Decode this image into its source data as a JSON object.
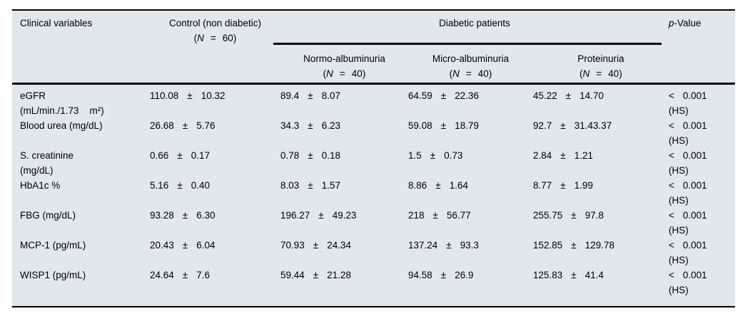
{
  "colors": {
    "table_bg": "#e2e7e9",
    "rule": "#000000",
    "text": "#000000",
    "page_bg": "#ffffff"
  },
  "tokens": {
    "open_paren": "(",
    "n": "N",
    "equals": "=",
    "close_paren": ")",
    "pm": "±"
  },
  "header": {
    "col1": "Clinical variables",
    "control": {
      "title": "Control (non diabetic)",
      "count": "60"
    },
    "group_title": "Diabetic patients",
    "subgroups": [
      {
        "title": "Normo-albuminuria",
        "count": "40"
      },
      {
        "title": "Micro-albuminuria",
        "count": "40"
      },
      {
        "title": "Proteinuria",
        "count": "40"
      }
    ],
    "pvalue": {
      "italic": "p",
      "rest": "-Value"
    }
  },
  "rows": [
    {
      "label1": "eGFR",
      "label2": "(mL/min./1.73    m²)",
      "control": {
        "mean": "110.08",
        "sd": "10.32"
      },
      "normo": {
        "mean": "89.4",
        "sd": "8.07"
      },
      "micro": {
        "mean": "64.59",
        "sd": "22.36"
      },
      "prot": {
        "mean": "45.22",
        "sd": "14.70"
      },
      "p": {
        "sign": "<",
        "value": "0.001",
        "sig": "(HS)"
      }
    },
    {
      "label1": "Blood urea (mg/dL)",
      "label2": "",
      "control": {
        "mean": "26.68",
        "sd": "5.76"
      },
      "normo": {
        "mean": "34.3",
        "sd": "6.23"
      },
      "micro": {
        "mean": "59.08",
        "sd": "18.79"
      },
      "prot": {
        "mean": "92.7",
        "sd": "31.43.37"
      },
      "p": {
        "sign": "<",
        "value": "0.001",
        "sig": "(HS)"
      }
    },
    {
      "label1": "S. creatinine",
      "label2": "(mg/dL)",
      "control": {
        "mean": "0.66",
        "sd": "0.17"
      },
      "normo": {
        "mean": "0.78",
        "sd": "0.18"
      },
      "micro": {
        "mean": "1.5",
        "sd": "0.73"
      },
      "prot": {
        "mean": "2.84",
        "sd": "1.21"
      },
      "p": {
        "sign": "<",
        "value": "0.001",
        "sig": "(HS)"
      }
    },
    {
      "label1": "HbA1c %",
      "label2": "",
      "control": {
        "mean": "5.16",
        "sd": "0.40"
      },
      "normo": {
        "mean": "8.03",
        "sd": "1.57"
      },
      "micro": {
        "mean": "8.86",
        "sd": "1.64"
      },
      "prot": {
        "mean": "8.77",
        "sd": "1.99"
      },
      "p": {
        "sign": "<",
        "value": "0.001",
        "sig": "(HS)"
      }
    },
    {
      "label1": "FBG (mg/dL)",
      "label2": "",
      "control": {
        "mean": "93.28",
        "sd": "6.30"
      },
      "normo": {
        "mean": "196.27",
        "sd": "49.23"
      },
      "micro": {
        "mean": "218",
        "sd": "56.77"
      },
      "prot": {
        "mean": "255.75",
        "sd": "97.8"
      },
      "p": {
        "sign": "<",
        "value": "0.001",
        "sig": "(HS)"
      }
    },
    {
      "label1": "MCP-1 (pg/mL)",
      "label2": "",
      "control": {
        "mean": "20.43",
        "sd": "6.04"
      },
      "normo": {
        "mean": "70.93",
        "sd": "24.34"
      },
      "micro": {
        "mean": "137.24",
        "sd": "93.3"
      },
      "prot": {
        "mean": "152.85",
        "sd": "129.78"
      },
      "p": {
        "sign": "<",
        "value": "0.001",
        "sig": "(HS)"
      }
    },
    {
      "label1": "WISP1 (pg/mL)",
      "label2": "",
      "control": {
        "mean": "24.64",
        "sd": "7.6"
      },
      "normo": {
        "mean": "59.44",
        "sd": "21.28"
      },
      "micro": {
        "mean": "94.58",
        "sd": "26.9"
      },
      "prot": {
        "mean": "125.83",
        "sd": "41.4"
      },
      "p": {
        "sign": "<",
        "value": "0.001",
        "sig": "(HS)"
      }
    }
  ]
}
